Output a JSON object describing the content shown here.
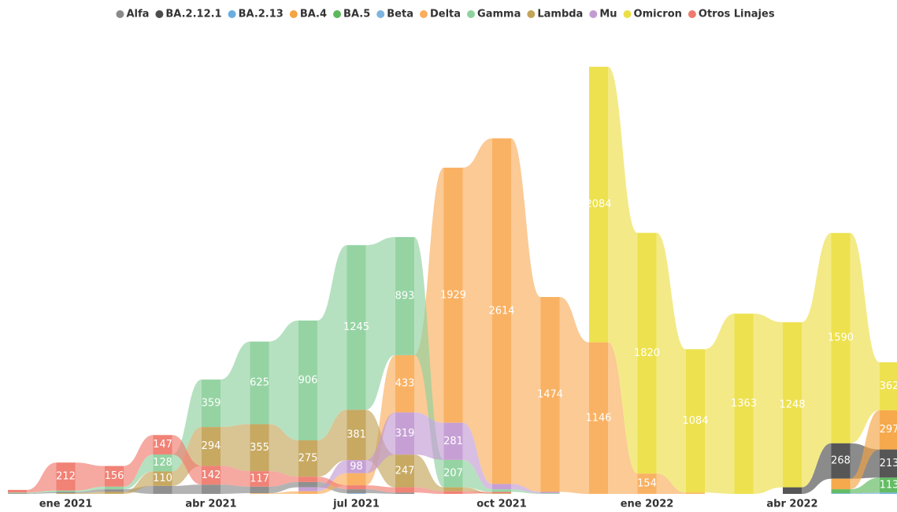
{
  "chart_data": {
    "type": "ribbon",
    "categories": [
      null,
      "ene 2021",
      null,
      null,
      "abr 2021",
      null,
      null,
      "jul 2021",
      null,
      null,
      "oct 2021",
      null,
      null,
      "ene 2022",
      null,
      null,
      "abr 2022",
      null,
      null
    ],
    "ylim": [
      0,
      3300
    ],
    "series": [
      {
        "name": "Alfa",
        "color": "#8a8a8a",
        "values": [
          5,
          10,
          20,
          60,
          70,
          50,
          40,
          30,
          10,
          0,
          0,
          0,
          0,
          0,
          0,
          0,
          0,
          0,
          0
        ]
      },
      {
        "name": "BA.2.12.1",
        "color": "#4d4d4d",
        "values": [
          0,
          0,
          0,
          0,
          0,
          0,
          0,
          0,
          0,
          0,
          0,
          0,
          0,
          0,
          0,
          0,
          50,
          268,
          213
        ]
      },
      {
        "name": "BA.2.13",
        "color": "#6aaee0",
        "values": [
          0,
          0,
          0,
          0,
          0,
          0,
          0,
          0,
          0,
          0,
          0,
          0,
          0,
          0,
          0,
          0,
          0,
          5,
          10
        ]
      },
      {
        "name": "BA.4",
        "color": "#f5a443",
        "values": [
          0,
          0,
          0,
          0,
          0,
          0,
          0,
          0,
          0,
          0,
          0,
          0,
          0,
          0,
          0,
          0,
          0,
          80,
          297
        ]
      },
      {
        "name": "BA.5",
        "color": "#5cb85c",
        "values": [
          0,
          0,
          0,
          0,
          0,
          0,
          0,
          0,
          0,
          0,
          0,
          0,
          0,
          0,
          0,
          0,
          0,
          30,
          113
        ]
      },
      {
        "name": "Beta",
        "color": "#7fb3e0",
        "values": [
          0,
          0,
          0,
          0,
          0,
          0,
          0,
          5,
          0,
          0,
          0,
          0,
          0,
          0,
          0,
          0,
          0,
          0,
          0
        ]
      },
      {
        "name": "Delta",
        "color": "#f9ae5c",
        "values": [
          0,
          0,
          0,
          0,
          0,
          5,
          20,
          92,
          433,
          1929,
          2614,
          1474,
          1146,
          154,
          10,
          0,
          0,
          0,
          0
        ]
      },
      {
        "name": "Gamma",
        "color": "#8fd19e",
        "values": [
          5,
          10,
          20,
          128,
          359,
          625,
          906,
          1245,
          893,
          207,
          20,
          5,
          0,
          0,
          0,
          0,
          0,
          0,
          0
        ]
      },
      {
        "name": "Lambda",
        "color": "#c4a45a",
        "values": [
          0,
          5,
          15,
          110,
          294,
          355,
          275,
          381,
          247,
          30,
          5,
          0,
          0,
          0,
          0,
          0,
          0,
          0,
          0
        ]
      },
      {
        "name": "Mu",
        "color": "#c39bd3",
        "values": [
          0,
          0,
          0,
          0,
          0,
          0,
          30,
          98,
          319,
          281,
          40,
          10,
          0,
          0,
          0,
          0,
          0,
          0,
          0
        ]
      },
      {
        "name": "Omicron",
        "color": "#ecdf46",
        "values": [
          0,
          0,
          0,
          0,
          0,
          0,
          0,
          0,
          0,
          0,
          0,
          0,
          2084,
          1820,
          1084,
          1363,
          1248,
          1590,
          362
        ]
      },
      {
        "name": "Otros Linajes",
        "color": "#ef7b6f",
        "values": [
          20,
          212,
          156,
          147,
          142,
          117,
          40,
          30,
          40,
          20,
          10,
          0,
          0,
          0,
          0,
          0,
          0,
          0,
          0
        ]
      }
    ]
  }
}
